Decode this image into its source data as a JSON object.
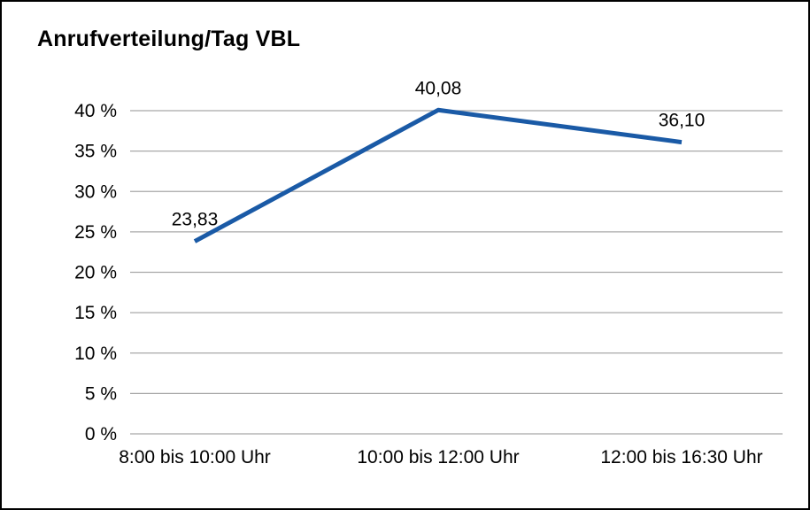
{
  "chart_data": {
    "type": "line",
    "title": "Anrufverteilung/Tag VBL",
    "categories": [
      "8:00 bis 10:00 Uhr",
      "10:00 bis 12:00 Uhr",
      "12:00 bis 16:30 Uhr"
    ],
    "values": [
      23.83,
      40.08,
      36.1
    ],
    "value_labels": [
      "23,83",
      "40,08",
      "36,10"
    ],
    "xlabel": "",
    "ylabel": "",
    "ylim": [
      0,
      40
    ],
    "ytick_step": 5,
    "y_ticks": [
      0,
      5,
      10,
      15,
      20,
      25,
      30,
      35,
      40
    ],
    "y_tick_labels": [
      "0 %",
      "5 %",
      "10 %",
      "15 %",
      "20 %",
      "25 %",
      "30 %",
      "35 %",
      "40 %"
    ],
    "grid": true,
    "legend": "none",
    "line_color": "#1a5aa6",
    "grid_color": "#a8a8a8",
    "text_color": "#000000",
    "border_color": "#000000",
    "background": "#ffffff"
  }
}
